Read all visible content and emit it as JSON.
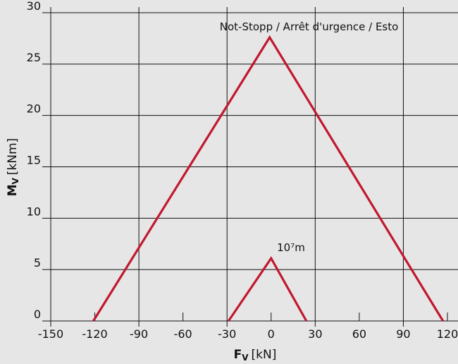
{
  "chart_data": {
    "type": "line",
    "xlabel": {
      "symbol": "F",
      "sub": "V",
      "unit": "[kN]"
    },
    "ylabel": {
      "symbol": "M",
      "sub": "V",
      "unit": "[kNm]"
    },
    "xlim": [
      -150,
      120
    ],
    "ylim": [
      0,
      30
    ],
    "x_ticks": [
      "-150",
      "-120",
      "-90",
      "-60",
      "-30",
      "0",
      "30",
      "60",
      "90",
      "120"
    ],
    "x_tick_values": [
      -150,
      -120,
      -90,
      -60,
      -30,
      0,
      30,
      60,
      90,
      120
    ],
    "y_ticks": [
      "0",
      "5",
      "10",
      "15",
      "20",
      "25",
      "30"
    ],
    "y_tick_values": [
      0,
      5,
      10,
      15,
      20,
      25,
      30
    ],
    "grid": true,
    "series": [
      {
        "name": "Not-Stopp / Arrêt d'urgence / Esto",
        "x": [
          -121,
          -1,
          117
        ],
        "y": [
          0,
          27.6,
          0
        ]
      },
      {
        "name": "10⁷m",
        "x": [
          -29,
          0,
          24
        ],
        "y": [
          0,
          6.1,
          0
        ]
      }
    ],
    "annotations": [
      {
        "text": "Not-Stopp / Arrêt d'urgence / Esto",
        "x": -35,
        "y": 28.3
      },
      {
        "text": "10⁷m",
        "x": 4,
        "y": 6.8
      }
    ],
    "colors": {
      "line": "#c0182f",
      "grid": "#111111",
      "background": "#e6e6e6"
    }
  }
}
